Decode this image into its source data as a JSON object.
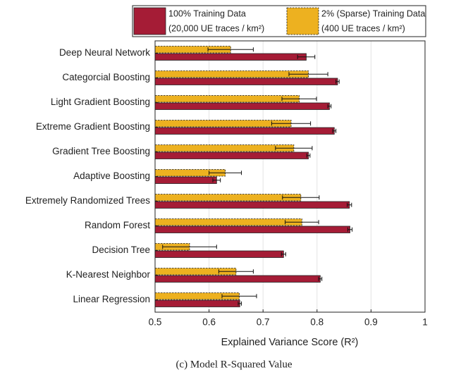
{
  "chart_data": {
    "type": "hbar",
    "caption": "(c) Model R-Squared Value",
    "xlabel": "Explained Variance Score (R²)",
    "categories": [
      "Deep Neural Network",
      "Categorcial Boosting",
      "Light Gradient Boosting",
      "Extreme Gradient Boosting",
      "Gradient Tree Boosting",
      "Adaptive Boosting",
      "Extremely Randomized Trees",
      "Random Forest",
      "Decision Tree",
      "K-Nearest Neighbor",
      "Linear Regression"
    ],
    "series": [
      {
        "name": "100% Training Data",
        "description": "(20,000 UE traces / km²)",
        "color": "#a51c36",
        "dashed": false,
        "values": [
          0.78,
          0.838,
          0.823,
          0.832,
          0.784,
          0.614,
          0.86,
          0.861,
          0.738,
          0.806,
          0.657
        ],
        "errors": [
          0.016,
          0.003,
          0.003,
          0.003,
          0.003,
          0.007,
          0.004,
          0.004,
          0.004,
          0.003,
          0.003
        ]
      },
      {
        "name": "2% (Sparse) Training Data",
        "description": "(400 UE traces / km²)",
        "color": "#edb120",
        "dashed": true,
        "values": [
          0.64,
          0.784,
          0.767,
          0.752,
          0.757,
          0.63,
          0.77,
          0.772,
          0.564,
          0.65,
          0.656
        ],
        "errors": [
          0.042,
          0.036,
          0.032,
          0.036,
          0.034,
          0.03,
          0.034,
          0.031,
          0.05,
          0.032,
          0.032
        ]
      }
    ],
    "xlim": [
      0.5,
      1
    ],
    "xticks": [
      0.5,
      0.6,
      0.7,
      0.8,
      0.9,
      1
    ],
    "grid": true
  }
}
